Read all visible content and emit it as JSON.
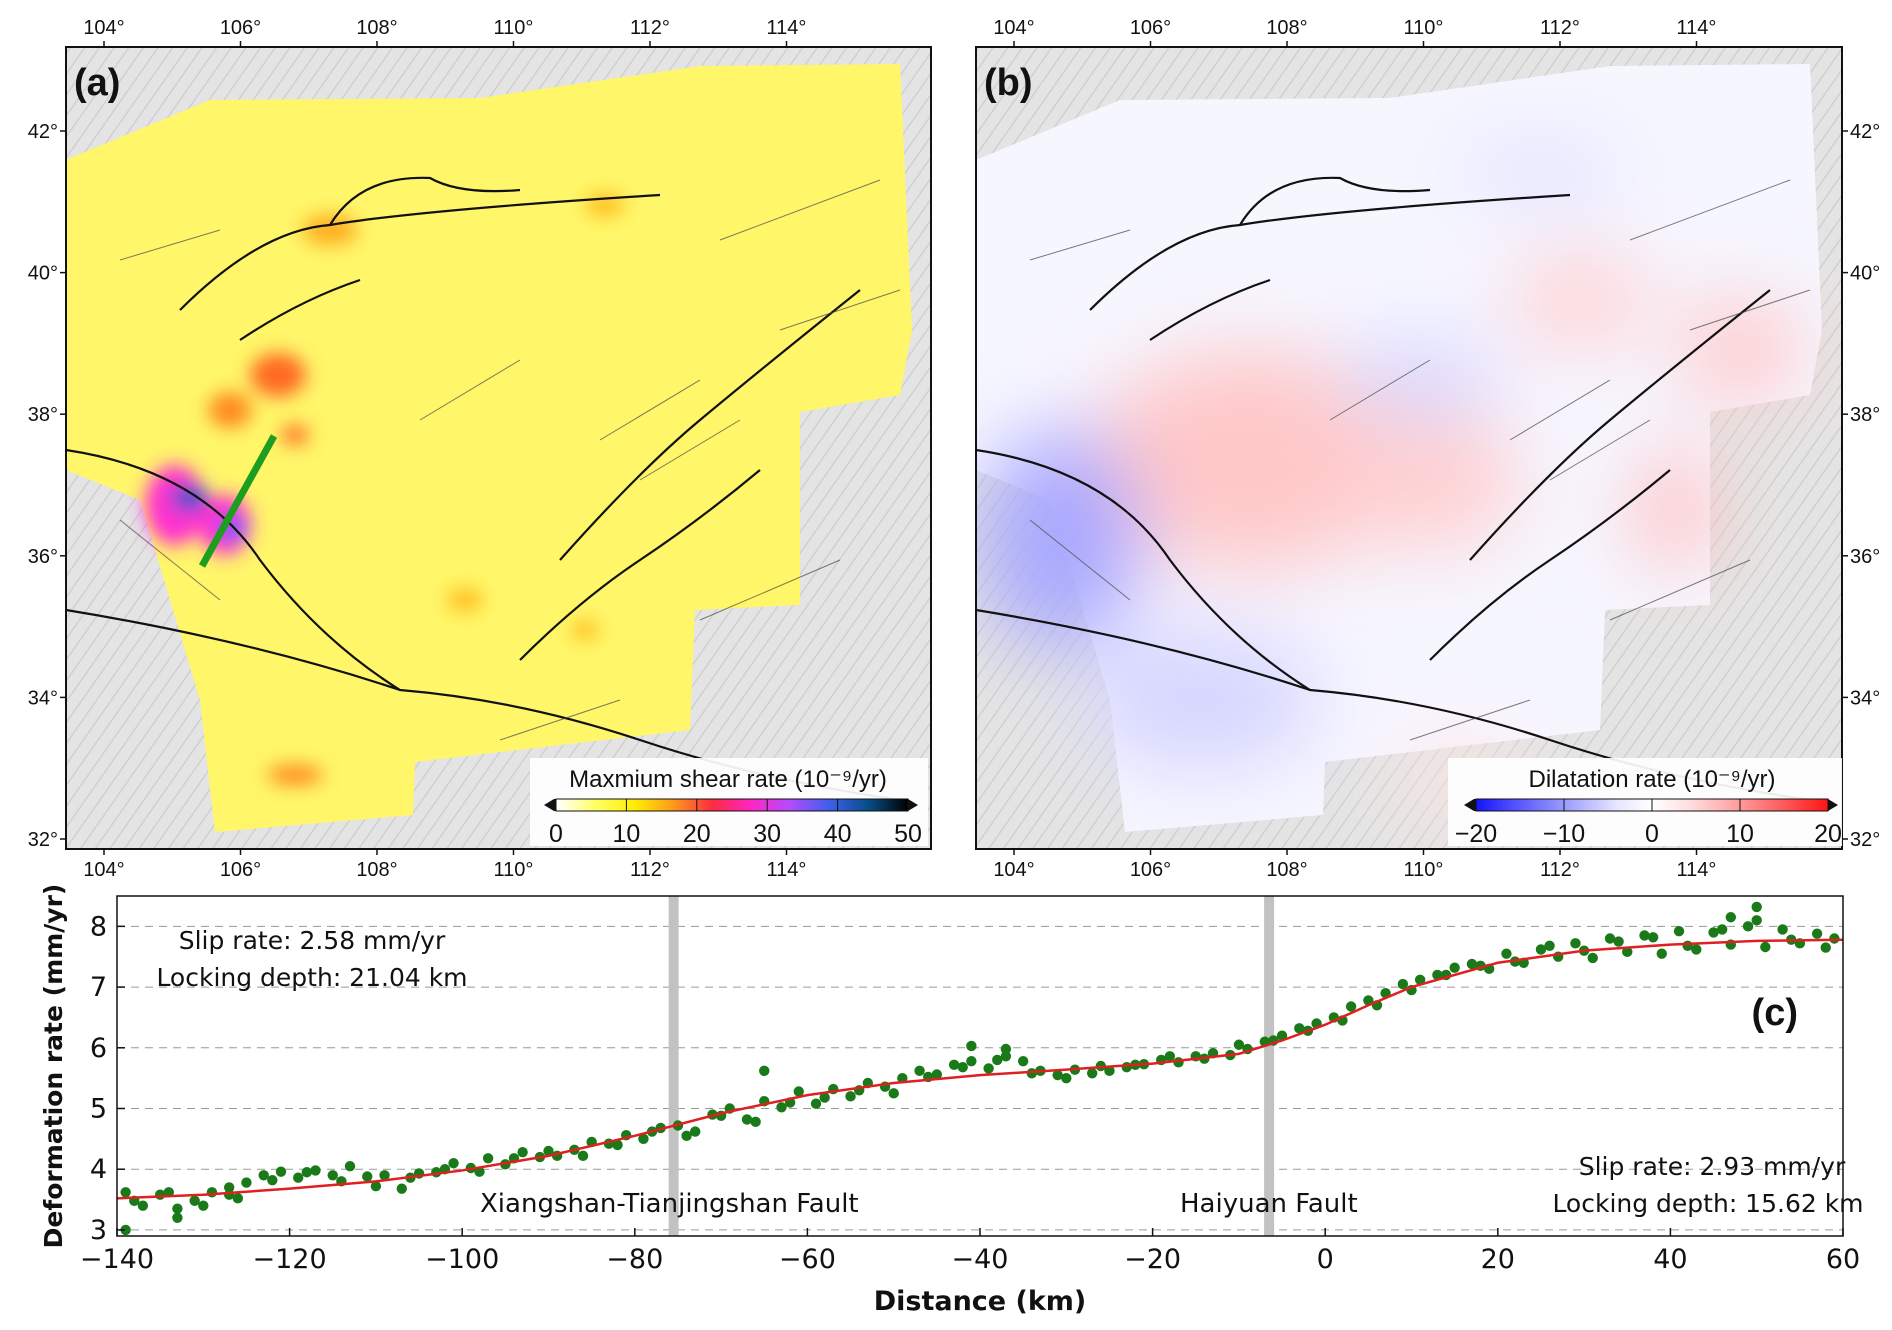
{
  "maps": [
    {
      "panel": "(a)",
      "colorbar_title": "Maxmium shear rate (10⁻⁹/yr)",
      "colorbar_ticks": [
        "0",
        "10",
        "20",
        "30",
        "40",
        "50"
      ],
      "colorbar_colors": [
        "#ffffff",
        "#ffff66",
        "#ffee00",
        "#ff9a1a",
        "#ff2a40",
        "#ff26c6",
        "#b14cff",
        "#3e5eea",
        "#064d86",
        "#000000"
      ],
      "lon_ticks": [
        "104°",
        "106°",
        "108°",
        "110°",
        "112°",
        "114°"
      ],
      "lat_ticks": [
        "42°",
        "40°",
        "38°",
        "36°",
        "34°",
        "32°"
      ],
      "profile_color": "#1e9e1e"
    },
    {
      "panel": "(b)",
      "colorbar_title": "Dilatation rate (10⁻⁹/yr)",
      "colorbar_ticks": [
        "−20",
        "−10",
        "0",
        "10",
        "20"
      ],
      "colorbar_colors": [
        "#1414ff",
        "#4c4cff",
        "#8080ff",
        "#b4b4ff",
        "#e6e6ff",
        "#ffffff",
        "#ffe1e1",
        "#ffb4b4",
        "#ff8080",
        "#ff4c4c",
        "#ff1414"
      ],
      "lon_ticks": [
        "104°",
        "106°",
        "108°",
        "110°",
        "112°",
        "114°"
      ],
      "lat_ticks": [
        "42°",
        "40°",
        "38°",
        "36°",
        "34°",
        "32°"
      ]
    }
  ],
  "chart_data": {
    "type": "scatter",
    "panel": "(c)",
    "xlabel": "Distance (km)",
    "ylabel": "Deformation rate (mm/yr)",
    "xlim": [
      -140,
      60
    ],
    "ylim": [
      2.9,
      8.5
    ],
    "xticks": [
      -140,
      -120,
      -100,
      -80,
      -60,
      -40,
      -20,
      0,
      20,
      40,
      60
    ],
    "yticks": [
      3,
      4,
      5,
      6,
      7,
      8
    ],
    "xtick_labels": [
      "−140",
      "−120",
      "−100",
      "−80",
      "−60",
      "−40",
      "−20",
      "0",
      "20",
      "40",
      "60"
    ],
    "ytick_labels": [
      "3",
      "4",
      "5",
      "6",
      "7",
      "8"
    ],
    "grid": "horizontal dashed",
    "faults": [
      {
        "name": "Xiangshan-Tianjingshan Fault",
        "x": -75.5
      },
      {
        "name": "Haiyuan Fault",
        "x": -6.5
      }
    ],
    "annotations": [
      {
        "text": "Slip rate: 2.58 mm/yr"
      },
      {
        "text": "Locking depth: 21.04 km"
      },
      {
        "text": "Slip rate: 2.93 mm/yr"
      },
      {
        "text": "Locking depth: 15.62 km"
      }
    ],
    "series": [
      {
        "name": "Observed deformation rate",
        "kind": "points",
        "color": "#1a7a1a",
        "x": [
          -139,
          -137,
          -135,
          -133,
          -131,
          -129,
          -127,
          -125,
          -123,
          -121,
          -119,
          -117,
          -115,
          -113,
          -111,
          -109,
          -107,
          -105,
          -103,
          -101,
          -99,
          -97,
          -95,
          -93,
          -91,
          -89,
          -87,
          -85,
          -83,
          -81,
          -79,
          -77,
          -75,
          -73,
          -71,
          -69,
          -67,
          -65,
          -63,
          -61,
          -59,
          -57,
          -55,
          -53,
          -51,
          -49,
          -47,
          -45,
          -43,
          -41,
          -39,
          -37,
          -35,
          -33,
          -31,
          -29,
          -27,
          -25,
          -23,
          -21,
          -19,
          -17,
          -15,
          -13,
          -11,
          -9,
          -7,
          -5,
          -3,
          -1,
          1,
          3,
          5,
          7,
          9,
          11,
          13,
          15,
          17,
          19,
          21,
          23,
          25,
          27,
          29,
          31,
          33,
          35,
          37,
          39,
          41,
          43,
          45,
          47,
          49,
          51,
          53,
          55,
          57,
          59,
          -138,
          -134,
          -130,
          -126,
          -122,
          -118,
          -114,
          -110,
          -106,
          -102,
          -98,
          -94,
          -90,
          -86,
          -82,
          -78,
          -74,
          -70,
          -66,
          -62,
          -58,
          -54,
          -50,
          -46,
          -42,
          -38,
          -34,
          -30,
          -26,
          -22,
          -18,
          -14,
          -10,
          -6,
          -2,
          2,
          6,
          10,
          14,
          18,
          22,
          26,
          30,
          34,
          38,
          42,
          46,
          50,
          54,
          58,
          -139,
          -65,
          -41,
          -37,
          50,
          47,
          -133,
          -127
        ],
        "y": [
          3.62,
          3.4,
          3.58,
          3.35,
          3.48,
          3.62,
          3.7,
          3.78,
          3.9,
          3.96,
          3.86,
          3.98,
          3.9,
          4.05,
          3.88,
          3.9,
          3.68,
          3.93,
          3.95,
          4.1,
          4.02,
          4.18,
          4.08,
          4.28,
          4.2,
          4.22,
          4.32,
          4.45,
          4.42,
          4.56,
          4.5,
          4.68,
          4.72,
          4.62,
          4.9,
          5.0,
          4.82,
          5.12,
          5.02,
          5.28,
          5.08,
          5.32,
          5.2,
          5.42,
          5.36,
          5.5,
          5.62,
          5.56,
          5.72,
          5.78,
          5.66,
          5.86,
          5.78,
          5.62,
          5.55,
          5.64,
          5.58,
          5.62,
          5.68,
          5.73,
          5.8,
          5.76,
          5.86,
          5.91,
          5.88,
          5.98,
          6.1,
          6.2,
          6.32,
          6.4,
          6.5,
          6.68,
          6.78,
          6.9,
          7.05,
          7.12,
          7.2,
          7.32,
          7.38,
          7.3,
          7.55,
          7.4,
          7.62,
          7.5,
          7.72,
          7.48,
          7.8,
          7.58,
          7.85,
          7.55,
          7.92,
          7.62,
          7.9,
          7.7,
          8.0,
          7.66,
          7.95,
          7.72,
          7.88,
          7.8,
          3.48,
          3.62,
          3.4,
          3.52,
          3.82,
          3.95,
          3.8,
          3.72,
          3.86,
          4.0,
          3.96,
          4.18,
          4.3,
          4.22,
          4.4,
          4.62,
          4.55,
          4.88,
          4.78,
          5.1,
          5.18,
          5.3,
          5.25,
          5.52,
          5.68,
          5.8,
          5.58,
          5.5,
          5.7,
          5.72,
          5.86,
          5.82,
          6.05,
          6.12,
          6.28,
          6.45,
          6.7,
          6.95,
          7.2,
          7.35,
          7.42,
          7.68,
          7.6,
          7.75,
          7.82,
          7.68,
          7.95,
          8.1,
          7.78,
          7.65,
          3.0,
          5.62,
          6.03,
          5.98,
          8.32,
          8.15,
          3.2,
          3.58
        ]
      },
      {
        "name": "Model fit",
        "kind": "line",
        "color": "#e02020",
        "x": [
          -140,
          -130,
          -120,
          -110,
          -100,
          -90,
          -80,
          -70,
          -60,
          -50,
          -40,
          -30,
          -20,
          -10,
          -5,
          0,
          5,
          10,
          20,
          30,
          40,
          50,
          60
        ],
        "y": [
          3.52,
          3.58,
          3.68,
          3.8,
          3.98,
          4.22,
          4.55,
          4.92,
          5.22,
          5.42,
          5.55,
          5.64,
          5.74,
          5.9,
          6.12,
          6.38,
          6.7,
          7.0,
          7.4,
          7.6,
          7.7,
          7.76,
          7.78
        ]
      }
    ]
  }
}
